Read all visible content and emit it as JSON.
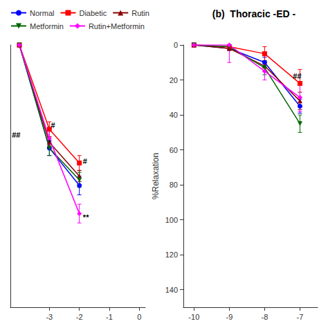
{
  "chart_data": [
    {
      "type": "line",
      "legend": "upper left",
      "grid": false,
      "tick_labels": "x",
      "xlim": [
        -4.3,
        0.2
      ],
      "xticks": [
        -3,
        -2,
        -1,
        0
      ],
      "ylim": [
        -140,
        0
      ],
      "series": [
        {
          "name": "Normal",
          "color": "#0000FF",
          "marker": "circle",
          "x": [
            -4,
            -3,
            -2
          ],
          "values": [
            0,
            -55,
            -75
          ],
          "errors": [
            0,
            4,
            5
          ]
        },
        {
          "name": "Diabetic",
          "color": "#FF0000",
          "marker": "square",
          "x": [
            -4,
            -3,
            -2
          ],
          "values": [
            0,
            -45,
            -63
          ],
          "errors": [
            0,
            4,
            4
          ]
        },
        {
          "name": "Rutin",
          "color": "#8B0000",
          "marker": "triangle-up",
          "x": [
            -4,
            -3,
            -2
          ],
          "values": [
            0,
            -52,
            -70
          ],
          "errors": [
            0,
            3,
            3
          ]
        },
        {
          "name": "Metformin",
          "color": "#006400",
          "marker": "triangle-down",
          "x": [
            -4,
            -3,
            -2
          ],
          "values": [
            0,
            -55,
            -72
          ],
          "errors": [
            0,
            4,
            4
          ]
        },
        {
          "name": "Rutin+Metformin",
          "color": "#FF00FF",
          "marker": "diamond",
          "x": [
            -4,
            -3,
            -2
          ],
          "values": [
            0,
            -50,
            -90
          ],
          "errors": [
            0,
            5,
            5
          ]
        }
      ],
      "annotations": [
        {
          "text": "##",
          "x": -4.25,
          "y": -48
        },
        {
          "text": "#",
          "x": -2.95,
          "y": -43
        },
        {
          "text": "*",
          "x": -3.05,
          "y": -52
        },
        {
          "text": "#",
          "x": -1.88,
          "y": -62
        },
        {
          "text": "**",
          "x": -1.88,
          "y": -92
        }
      ]
    },
    {
      "type": "line",
      "title": "(b)  Thoracic -ED -",
      "ylabel": "%Relaxation",
      "grid": false,
      "xlim": [
        -10.3,
        -6.5
      ],
      "xticks": [
        -10,
        -9,
        -8,
        -7
      ],
      "ylim": [
        150,
        0
      ],
      "yticks": [
        0,
        20,
        40,
        60,
        80,
        100,
        120,
        140
      ],
      "series": [
        {
          "name": "Normal",
          "color": "#0000FF",
          "marker": "circle",
          "x": [
            -10,
            -9,
            -8,
            -7
          ],
          "values": [
            0,
            2,
            10,
            35
          ],
          "errors": [
            0,
            1,
            3,
            4
          ]
        },
        {
          "name": "Diabetic",
          "color": "#FF0000",
          "marker": "square",
          "x": [
            -10,
            -9,
            -8,
            -7
          ],
          "values": [
            0,
            1,
            5,
            22
          ],
          "errors": [
            0,
            1,
            4,
            8
          ]
        },
        {
          "name": "Rutin",
          "color": "#8B0000",
          "marker": "triangle-up",
          "x": [
            -10,
            -9,
            -8,
            -7
          ],
          "values": [
            0,
            2,
            12,
            32
          ],
          "errors": [
            0,
            1,
            3,
            5
          ]
        },
        {
          "name": "Metformin",
          "color": "#006400",
          "marker": "triangle-down",
          "x": [
            -10,
            -9,
            -8,
            -7
          ],
          "values": [
            0,
            1,
            13,
            45
          ],
          "errors": [
            0,
            1,
            4,
            5
          ]
        },
        {
          "name": "Rutin+Metformin",
          "color": "#FF00FF",
          "marker": "diamond",
          "x": [
            -10,
            -9,
            -8,
            -7
          ],
          "values": [
            0,
            0,
            15,
            30
          ],
          "errors": [
            0,
            10,
            5,
            8
          ]
        }
      ],
      "annotations": [
        {
          "text": "##",
          "x": -7.2,
          "y": 18
        }
      ]
    }
  ]
}
